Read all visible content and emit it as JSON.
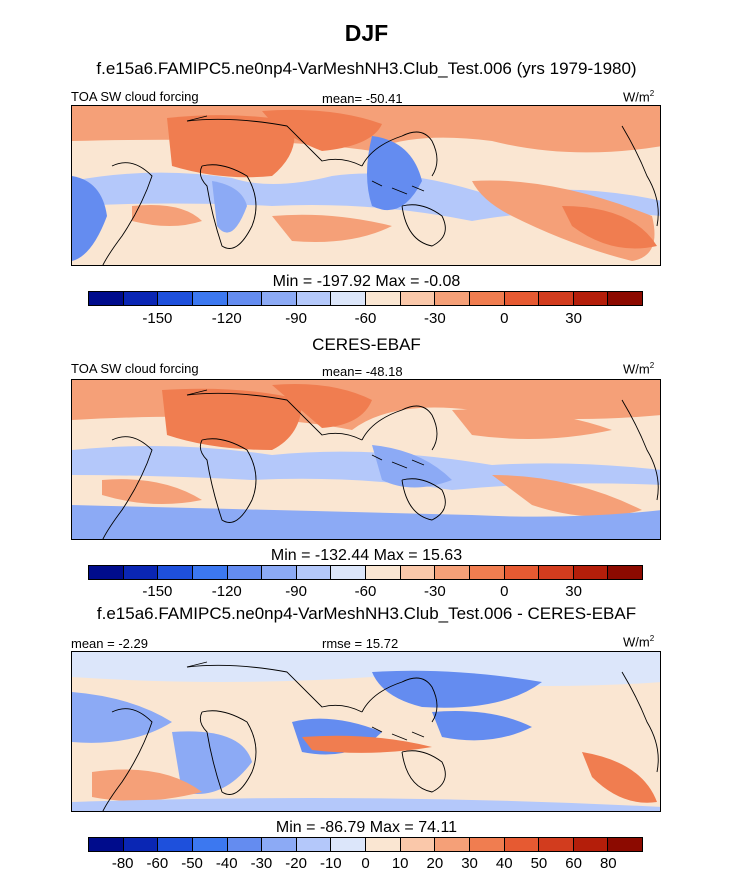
{
  "main_title": "DJF",
  "units": "W/m",
  "units_sup": "2",
  "chart_data": [
    {
      "type": "heatmap",
      "title": "f.e15a6.FAMIPC5.ne0np4-VarMeshNH3.Club_Test.006 (yrs 1979-1980)",
      "left_label": "TOA SW cloud forcing",
      "center_label": "mean= -50.41",
      "minmax": "Min = -197.92 Max =  -0.08",
      "colorbar_ticks": [
        "-150",
        "-120",
        "-90",
        "-60",
        "-30",
        "0",
        "30"
      ]
    },
    {
      "type": "heatmap",
      "title": "CERES-EBAF",
      "left_label": "TOA SW cloud forcing",
      "center_label": "mean= -48.18",
      "minmax": "Min = -132.44 Max =  15.63",
      "colorbar_ticks": [
        "-150",
        "-120",
        "-90",
        "-60",
        "-30",
        "0",
        "30"
      ]
    },
    {
      "type": "heatmap",
      "title": "f.e15a6.FAMIPC5.ne0np4-VarMeshNH3.Club_Test.006 - CERES-EBAF",
      "left_label": "mean =  -2.29",
      "center_label": "rmse =  15.72",
      "minmax": "Min = -86.79 Max =  74.11",
      "colorbar_ticks": [
        "-80",
        "-60",
        "-50",
        "-40",
        "-30",
        "-20",
        "-10",
        "0",
        "10",
        "20",
        "30",
        "40",
        "50",
        "60",
        "80"
      ]
    }
  ],
  "palette": [
    "#000c8c",
    "#0a26b4",
    "#1e50dc",
    "#3c78f0",
    "#648cf0",
    "#8caaf5",
    "#b4c8fa",
    "#dce6fa",
    "#fae6d2",
    "#fac8aa",
    "#f5a078",
    "#f07d50",
    "#e65a32",
    "#d23c1e",
    "#b41e0a",
    "#8c0a00"
  ]
}
